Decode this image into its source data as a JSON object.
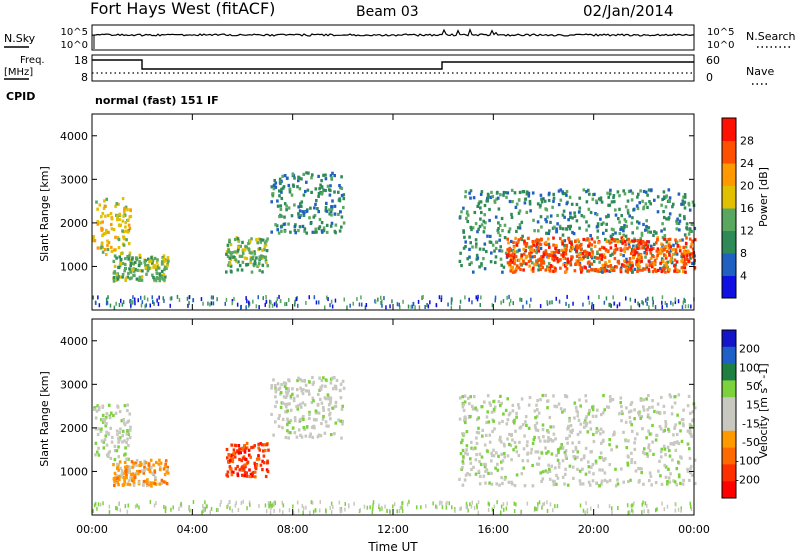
{
  "header": {
    "station": "Fort Hays West (fitACF)",
    "beam": "Beam 03",
    "date": "02/Jan/2014"
  },
  "noise_panel": {
    "left_label": "N.Sky",
    "right_label": "N.Search",
    "left_ticks": [
      "10^5",
      "10^0"
    ],
    "right_ticks": [
      "10^5",
      "10^0"
    ]
  },
  "freq_panel": {
    "left_label_1": "Freq.",
    "left_label_2": "[MHz]",
    "right_label": "Nave",
    "left_ticks": [
      "18",
      "8"
    ],
    "right_ticks": [
      "60",
      "0"
    ],
    "cpid_label": "CPID",
    "cpid_value": "normal (fast) 151 IF"
  },
  "colors": {
    "power_scale": [
      "#1010e0",
      "#2060c0",
      "#2e8b57",
      "#5aa860",
      "#e0c000",
      "#ff9900",
      "#ff5000",
      "#ff1000"
    ],
    "velocity_scale": [
      "#1414c8",
      "#1f5fc8",
      "#1e8040",
      "#7cd23c",
      "#c8c8c0",
      "#c8c8c0",
      "#ff9900",
      "#ff6a00",
      "#ff3000",
      "#ff0000"
    ]
  },
  "chart_data": [
    {
      "type": "heatmap",
      "panel": "power",
      "ylabel": "Slant Range [km]",
      "yticks": [
        1000,
        2000,
        3000,
        4000
      ],
      "ylim": [
        0,
        4500
      ],
      "xlim": [
        0,
        24
      ],
      "colorbar": {
        "label": "Power [dB]",
        "ticks": [
          "28",
          "24",
          "20",
          "16",
          "12",
          "8",
          "4"
        ]
      },
      "echo_regions": [
        {
          "t0": 0.0,
          "t1": 1.5,
          "r0": 1300,
          "r1": 2600,
          "level": 4
        },
        {
          "t0": 0.8,
          "t1": 3.0,
          "r0": 700,
          "r1": 1300,
          "level": 3
        },
        {
          "t0": 5.3,
          "t1": 7.0,
          "r0": 900,
          "r1": 1700,
          "level": 3
        },
        {
          "t0": 7.1,
          "t1": 10.0,
          "r0": 1800,
          "r1": 3200,
          "level": 2
        },
        {
          "t0": 14.6,
          "t1": 24.0,
          "r0": 900,
          "r1": 2800,
          "level": 2
        },
        {
          "t0": 16.5,
          "t1": 24.0,
          "r0": 900,
          "r1": 1700,
          "level": 6
        }
      ]
    },
    {
      "type": "heatmap",
      "panel": "velocity",
      "ylabel": "Slant Range [km]",
      "yticks": [
        1000,
        2000,
        3000,
        4000
      ],
      "ylim": [
        0,
        4500
      ],
      "xlim": [
        0,
        24
      ],
      "xlabel": "Time UT",
      "xticks": [
        "00:00",
        "04:00",
        "08:00",
        "12:00",
        "16:00",
        "20:00",
        "00:00"
      ],
      "colorbar": {
        "label": "Velocity [m s^-1]",
        "ticks": [
          "200",
          "100",
          "50",
          "15",
          "-15",
          "-50",
          "-100",
          "-200"
        ]
      },
      "echo_regions": [
        {
          "t0": 0.0,
          "t1": 1.5,
          "r0": 1300,
          "r1": 2600,
          "level": 4
        },
        {
          "t0": 0.8,
          "t1": 3.0,
          "r0": 700,
          "r1": 1300,
          "level": 6
        },
        {
          "t0": 5.3,
          "t1": 7.0,
          "r0": 900,
          "r1": 1700,
          "level": 8
        },
        {
          "t0": 7.1,
          "t1": 10.0,
          "r0": 1800,
          "r1": 3200,
          "level": 4
        },
        {
          "t0": 14.6,
          "t1": 24.0,
          "r0": 700,
          "r1": 2800,
          "level": 4
        }
      ]
    }
  ]
}
